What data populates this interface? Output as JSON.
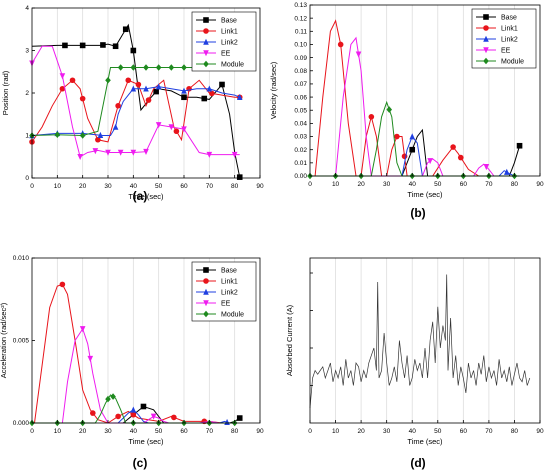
{
  "figure": {
    "panel_labels": [
      "(a)",
      "(b)",
      "(c)",
      "(d)"
    ]
  },
  "chart_data": [
    {
      "type": "line",
      "panel": "(a)",
      "xlabel": "Time (sec)",
      "ylabel": "Position (rad)",
      "xlim": [
        0,
        90
      ],
      "ylim": [
        0,
        4
      ],
      "xticks": [
        0,
        10,
        20,
        30,
        40,
        50,
        60,
        70,
        80,
        90
      ],
      "yticks": [
        0,
        1,
        2,
        3,
        4
      ],
      "grid": "vertical",
      "legend_position": "top-right",
      "series": [
        {
          "name": "Base",
          "color": "#000000",
          "marker": "square",
          "x": [
            0,
            10,
            20,
            27,
            30,
            33,
            35,
            38,
            40,
            43,
            47,
            50,
            55,
            60,
            65,
            70,
            75,
            78,
            80,
            82
          ],
          "y": [
            3.1,
            3.12,
            3.12,
            3.12,
            3.15,
            3.1,
            3.3,
            3.6,
            3.0,
            1.6,
            1.9,
            2.1,
            2.05,
            1.9,
            1.9,
            1.85,
            2.2,
            1.5,
            0.6,
            0.02
          ],
          "markers_x": [
            13,
            20,
            28,
            33,
            37,
            40,
            49,
            60,
            68,
            75,
            82
          ]
        },
        {
          "name": "Link1",
          "color": "#e8141b",
          "marker": "circle",
          "x": [
            0,
            4,
            8,
            12,
            16,
            19,
            22,
            26,
            30,
            34,
            38,
            42,
            45,
            48,
            52,
            56,
            59,
            62,
            66,
            70,
            75,
            80,
            82
          ],
          "y": [
            0.85,
            1.2,
            1.7,
            2.1,
            2.3,
            2.1,
            1.4,
            0.9,
            0.85,
            1.7,
            2.3,
            2.2,
            1.7,
            2.1,
            2.3,
            1.2,
            0.9,
            2.1,
            2.3,
            2.0,
            1.95,
            1.9,
            1.9
          ],
          "markers_x": [
            0,
            12,
            16,
            20,
            26,
            34,
            38,
            42,
            46,
            57,
            62,
            71,
            82
          ]
        },
        {
          "name": "Link2",
          "color": "#1f3fe0",
          "marker": "triangle-up",
          "x": [
            0,
            10,
            20,
            28,
            31,
            33,
            34,
            36,
            40,
            45,
            50,
            55,
            60,
            65,
            70,
            75,
            80,
            82
          ],
          "y": [
            1.0,
            1.05,
            1.05,
            1.0,
            1.0,
            1.2,
            1.5,
            1.8,
            2.1,
            2.1,
            2.15,
            2.1,
            2.05,
            2.1,
            2.1,
            2.0,
            1.95,
            1.9
          ],
          "markers_x": [
            0,
            10,
            20,
            27,
            33,
            40,
            45,
            50,
            60,
            70,
            82
          ]
        },
        {
          "name": "EE",
          "color": "#ef1cef",
          "marker": "triangle-down",
          "x": [
            0,
            4,
            8,
            12,
            16,
            19,
            22,
            26,
            30,
            35,
            40,
            45,
            50,
            55,
            60,
            66,
            70,
            75,
            80,
            82
          ],
          "y": [
            2.7,
            3.1,
            3.1,
            2.4,
            1.2,
            0.5,
            0.6,
            0.65,
            0.6,
            0.6,
            0.6,
            0.62,
            1.25,
            1.2,
            1.15,
            0.6,
            0.55,
            0.55,
            0.55,
            0.55
          ],
          "markers_x": [
            0,
            12,
            19,
            25,
            30,
            35,
            40,
            45,
            50,
            55,
            60,
            70,
            80
          ]
        },
        {
          "name": "Module",
          "color": "#1f8a1f",
          "marker": "diamond",
          "x": [
            0,
            10,
            20,
            26,
            29,
            31,
            40,
            50,
            60,
            70,
            80,
            82
          ],
          "y": [
            1.0,
            1.02,
            1.0,
            1.1,
            2.0,
            2.6,
            2.6,
            2.6,
            2.6,
            2.6,
            2.6,
            2.6
          ],
          "markers_x": [
            0,
            10,
            20,
            30,
            35,
            40,
            45,
            50,
            55,
            60,
            65,
            70,
            75,
            80
          ]
        }
      ]
    },
    {
      "type": "line",
      "panel": "(b)",
      "xlabel": "Time (sec)",
      "ylabel": "Velocity (rad/sec)",
      "xlim": [
        0,
        90
      ],
      "ylim": [
        0,
        0.13
      ],
      "xticks": [
        0,
        10,
        20,
        30,
        40,
        50,
        60,
        70,
        80,
        90
      ],
      "yticks": [
        0.0,
        0.01,
        0.02,
        0.03,
        0.04,
        0.05,
        0.06,
        0.07,
        0.08,
        0.09,
        0.1,
        0.11,
        0.12,
        0.13
      ],
      "grid": "vertical",
      "legend_position": "top-right",
      "series": [
        {
          "name": "Base",
          "color": "#000000",
          "marker": "square",
          "x": [
            36,
            38,
            40,
            42,
            44,
            46,
            78,
            80,
            82
          ],
          "y": [
            0,
            0.01,
            0.02,
            0.03,
            0.035,
            0,
            0,
            0.01,
            0.023
          ],
          "markers_x": [
            40,
            82
          ]
        },
        {
          "name": "Link1",
          "color": "#e8141b",
          "marker": "circle",
          "x": [
            2,
            5,
            8,
            10,
            12,
            15,
            18,
            20,
            22,
            24,
            26,
            28,
            30,
            32,
            34,
            36,
            38,
            48,
            52,
            56,
            58,
            62,
            66
          ],
          "y": [
            0,
            0.06,
            0.11,
            0.118,
            0.1,
            0.04,
            0,
            0,
            0.03,
            0.045,
            0.03,
            0,
            0,
            0.02,
            0.03,
            0.03,
            0,
            0,
            0.012,
            0.022,
            0.017,
            0.005,
            0
          ],
          "markers_x": [
            12,
            24,
            34,
            37,
            56,
            59
          ]
        },
        {
          "name": "Link2",
          "color": "#1f3fe0",
          "marker": "triangle-up",
          "x": [
            36,
            38,
            40,
            42,
            44,
            74,
            76,
            78,
            80
          ],
          "y": [
            0,
            0.02,
            0.03,
            0.025,
            0,
            0,
            0.004,
            0.002,
            0
          ],
          "markers_x": [
            40,
            77
          ]
        },
        {
          "name": "EE",
          "color": "#ef1cef",
          "marker": "triangle-down",
          "x": [
            10,
            13,
            16,
            18,
            20,
            22,
            24,
            26,
            44,
            46,
            48,
            50,
            52,
            64,
            66,
            68,
            70,
            72
          ],
          "y": [
            0,
            0.06,
            0.1,
            0.105,
            0.08,
            0.03,
            0,
            0,
            0,
            0.01,
            0.013,
            0.01,
            0,
            0,
            0.006,
            0.009,
            0.005,
            0
          ],
          "markers_x": [
            19,
            47,
            69
          ]
        },
        {
          "name": "Module",
          "color": "#1f8a1f",
          "marker": "diamond",
          "x": [
            0,
            24,
            26,
            28,
            30,
            32,
            34,
            36,
            40,
            50,
            60,
            70,
            80,
            82
          ],
          "y": [
            0,
            0,
            0.02,
            0.045,
            0.056,
            0.045,
            0.01,
            0,
            0,
            0,
            0,
            0,
            0,
            0
          ],
          "markers_x": [
            0,
            10,
            20,
            31,
            40,
            50,
            60,
            70,
            80
          ]
        }
      ]
    },
    {
      "type": "line",
      "panel": "(c)",
      "xlabel": "Time (sec)",
      "ylabel": "Acceleration (rad/sec²)",
      "xlim": [
        0,
        90
      ],
      "ylim": [
        0,
        0.01
      ],
      "xticks": [
        0,
        10,
        20,
        30,
        40,
        50,
        60,
        70,
        80,
        90
      ],
      "yticks": [
        0.0,
        0.005,
        0.01
      ],
      "ytick_labels": [
        "0.000",
        "0.005",
        "0.010"
      ],
      "grid": "vertical",
      "legend_position": "top-right",
      "series": [
        {
          "name": "Base",
          "color": "#000000",
          "marker": "square",
          "x": [
            36,
            40,
            44,
            48,
            52,
            78,
            80,
            82
          ],
          "y": [
            0,
            0.0005,
            0.001,
            0.0008,
            0,
            0,
            0.0001,
            0.0003
          ],
          "markers_x": [
            44,
            82
          ]
        },
        {
          "name": "Link1",
          "color": "#e8141b",
          "marker": "circle",
          "x": [
            1,
            4,
            7,
            10,
            12,
            14,
            17,
            20,
            23,
            26,
            30,
            34,
            38,
            42,
            46,
            50,
            55,
            60,
            65,
            70,
            75
          ],
          "y": [
            0,
            0.0035,
            0.007,
            0.0083,
            0.0084,
            0.0078,
            0.005,
            0.002,
            0.0008,
            0.0002,
            0,
            0.0004,
            0.0007,
            0.0003,
            0.0002,
            0.0001,
            0.0004,
            0.0001,
            0.0001,
            0.0001,
            0
          ],
          "markers_x": [
            12,
            24,
            34,
            40,
            56,
            68
          ]
        },
        {
          "name": "Link2",
          "color": "#1f3fe0",
          "marker": "triangle-up",
          "x": [
            34,
            36,
            38,
            40,
            42,
            44,
            46,
            74,
            76,
            78
          ],
          "y": [
            0,
            0.0003,
            0.0006,
            0.0008,
            0.0005,
            0.0001,
            0,
            0,
            0.0001,
            0
          ],
          "markers_x": [
            40,
            77
          ]
        },
        {
          "name": "EE",
          "color": "#ef1cef",
          "marker": "triangle-down",
          "x": [
            12,
            14,
            17,
            20,
            22,
            24,
            27,
            30,
            44,
            46,
            48,
            50,
            52,
            54,
            66,
            70,
            74
          ],
          "y": [
            0,
            0.0025,
            0.005,
            0.0057,
            0.0048,
            0.003,
            0.0008,
            0,
            0,
            0.0002,
            0.0004,
            0.0003,
            0.0001,
            0,
            0,
            0.0001,
            0
          ],
          "markers_x": [
            20,
            23,
            48
          ]
        },
        {
          "name": "Module",
          "color": "#1f8a1f",
          "marker": "diamond",
          "x": [
            0,
            25,
            27,
            29,
            31,
            33,
            35,
            37,
            40,
            50,
            60,
            70,
            80
          ],
          "y": [
            0,
            0,
            0.0005,
            0.0012,
            0.0017,
            0.0015,
            0.0008,
            0,
            0,
            0,
            0,
            0,
            0
          ],
          "markers_x": [
            0,
            10,
            20,
            30,
            32,
            40,
            50,
            60,
            70,
            80
          ]
        }
      ]
    },
    {
      "type": "line",
      "panel": "(d)",
      "xlabel": "Time (sec)",
      "ylabel": "Absorbed Current (A)",
      "xlim": [
        0,
        90
      ],
      "ylim": [
        0,
        2.2
      ],
      "xticks": [
        0,
        10,
        20,
        30,
        40,
        50,
        60,
        70,
        80,
        90
      ],
      "grid": "vertical",
      "series": [
        {
          "color": "#333333",
          "x": [
            0,
            1,
            2,
            3,
            4,
            5,
            6,
            7,
            8,
            9,
            10,
            11,
            12,
            13,
            14,
            15,
            16,
            17,
            18,
            19,
            20,
            21,
            22,
            23,
            24,
            25,
            26,
            26.5,
            27,
            28,
            29,
            30,
            31,
            32,
            33,
            34,
            35,
            36,
            37,
            38,
            39,
            40,
            41,
            42,
            43,
            44,
            45,
            46,
            47,
            48,
            49,
            50,
            51,
            52,
            53,
            53.5,
            54,
            55,
            56,
            57,
            58,
            59,
            60,
            61,
            62,
            63,
            64,
            65,
            66,
            67,
            68,
            69,
            70,
            71,
            72,
            73,
            74,
            75,
            76,
            77,
            78,
            79,
            80,
            81,
            82,
            83,
            84,
            85,
            86
          ],
          "y": [
            0.2,
            0.6,
            0.7,
            0.65,
            0.7,
            0.75,
            0.6,
            0.7,
            0.8,
            0.55,
            0.7,
            0.6,
            0.75,
            0.5,
            0.85,
            0.6,
            0.7,
            0.5,
            0.8,
            0.75,
            0.55,
            0.7,
            0.6,
            0.8,
            0.9,
            1.0,
            0.7,
            1.88,
            0.6,
            0.7,
            1.2,
            0.8,
            0.5,
            0.6,
            0.75,
            0.55,
            1.1,
            0.8,
            0.6,
            0.9,
            0.5,
            0.6,
            0.85,
            0.7,
            0.8,
            0.6,
            1.0,
            0.6,
            1.1,
            1.35,
            0.8,
            1.55,
            1.0,
            1.3,
            1.1,
            1.98,
            0.7,
            1.4,
            0.6,
            0.9,
            0.5,
            0.75,
            0.6,
            0.4,
            0.8,
            0.6,
            0.7,
            0.5,
            0.8,
            0.65,
            0.9,
            0.55,
            0.75,
            0.6,
            0.7,
            0.5,
            0.85,
            0.6,
            0.7,
            0.55,
            0.75,
            0.5,
            0.65,
            0.8,
            0.6,
            0.55,
            0.7,
            0.5,
            0.6
          ]
        }
      ]
    }
  ]
}
